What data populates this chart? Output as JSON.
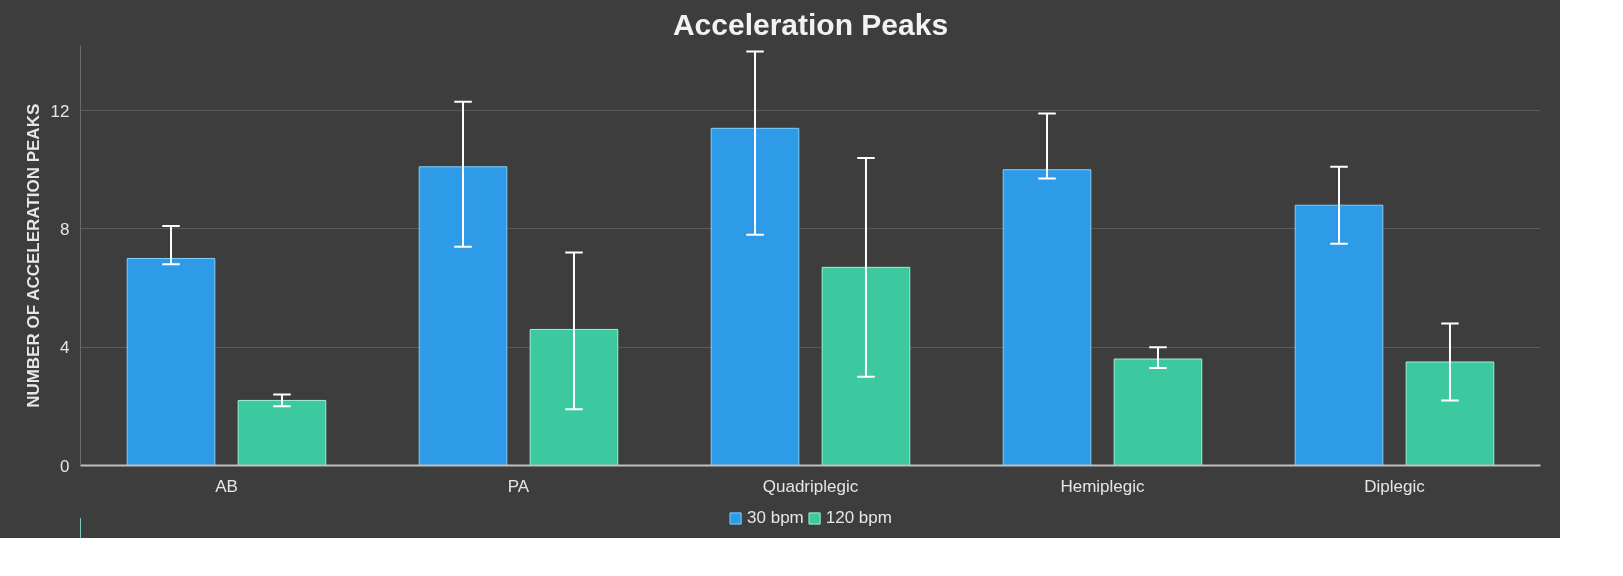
{
  "chart_data": {
    "type": "bar",
    "title": "Acceleration Peaks",
    "ylabel": "NUMBER OF ACCELERATION PEAKS",
    "categories": [
      "AB",
      "PA",
      "Quadriplegic",
      "Hemiplegic",
      "Diplegic"
    ],
    "series": [
      {
        "name": "30 bpm",
        "color": "#2e9be8",
        "values": [
          7.0,
          10.1,
          11.4,
          10.0,
          8.8
        ],
        "errors": [
          [
            6.8,
            8.1
          ],
          [
            7.4,
            12.3
          ],
          [
            7.8,
            14.0
          ],
          [
            9.7,
            11.9
          ],
          [
            7.5,
            10.1
          ]
        ]
      },
      {
        "name": "120 bpm",
        "color": "#3cc9a0",
        "values": [
          2.2,
          4.6,
          6.7,
          3.6,
          3.5
        ],
        "errors": [
          [
            2.0,
            2.4
          ],
          [
            1.9,
            7.2
          ],
          [
            3.0,
            10.4
          ],
          [
            3.3,
            4.0
          ],
          [
            2.2,
            4.8
          ]
        ]
      }
    ],
    "ylim": [
      0,
      14.2
    ],
    "yticks": [
      0,
      4,
      8,
      12
    ],
    "grid": "y",
    "legend": "bottom"
  }
}
